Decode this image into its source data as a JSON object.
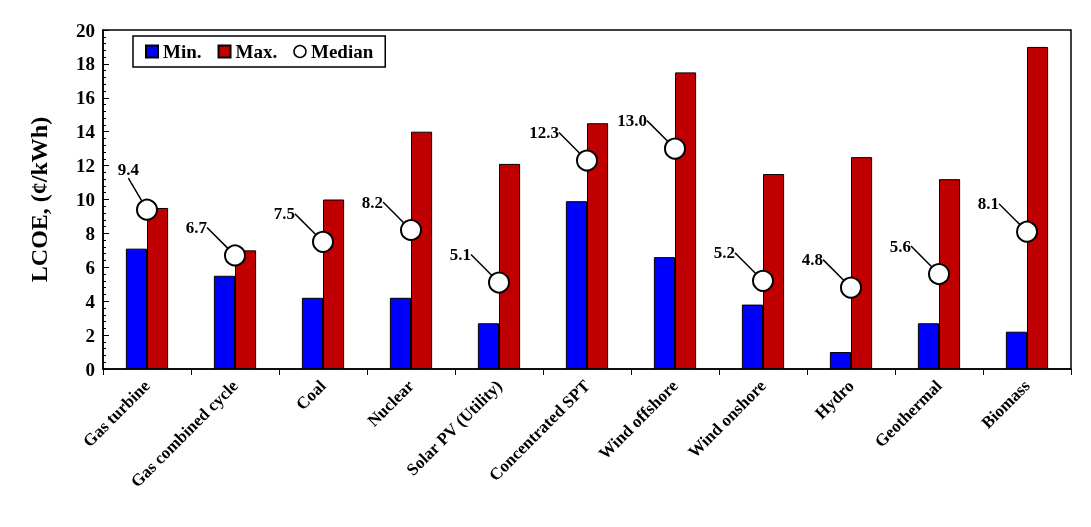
{
  "chart_data": {
    "type": "bar",
    "ylabel": "LCOE, (¢/kWh)",
    "categories": [
      "Gas turbine",
      "Gas combined cycle",
      "Coal",
      "Nuclear",
      "Solar PV (Utility)",
      "Concentrated SPT",
      "Wind offshore",
      "Wind onshore",
      "Hydro",
      "Geothermal",
      "Biomass"
    ],
    "series": [
      {
        "name": "Min.",
        "color": "#0000ff",
        "values": [
          7.1,
          5.5,
          4.2,
          4.2,
          2.7,
          9.9,
          6.6,
          3.8,
          1.0,
          2.7,
          2.2
        ]
      },
      {
        "name": "Max.",
        "color": "#c00000",
        "values": [
          9.5,
          7.0,
          10.0,
          14.0,
          12.1,
          14.5,
          17.5,
          11.5,
          12.5,
          11.2,
          19.0
        ]
      },
      {
        "name": "Median",
        "type": "scatter",
        "marker": "circle",
        "color": "#ffffff",
        "x": [
          "Gas turbine",
          "Gas combined cycle",
          "Coal",
          "Nuclear",
          "Solar PV (Utility)",
          "Concentrated SPT",
          "Wind offshore",
          "Wind onshore",
          "Hydro",
          "Geothermal",
          "Biomass"
        ],
        "values": [
          9.4,
          6.7,
          7.5,
          8.2,
          5.1,
          12.3,
          13.0,
          5.2,
          4.8,
          5.6,
          8.1
        ],
        "value_labels": [
          "9.4",
          "6.7",
          "7.5",
          "8.2",
          "5.1",
          "12.3",
          "13.0",
          "5.2",
          "4.8",
          "5.6",
          "8.1"
        ]
      }
    ],
    "ylim": [
      0,
      20
    ],
    "yticks": [
      0,
      2,
      4,
      6,
      8,
      10,
      12,
      14,
      16,
      18,
      20
    ],
    "grid": false,
    "legend": "top left"
  }
}
